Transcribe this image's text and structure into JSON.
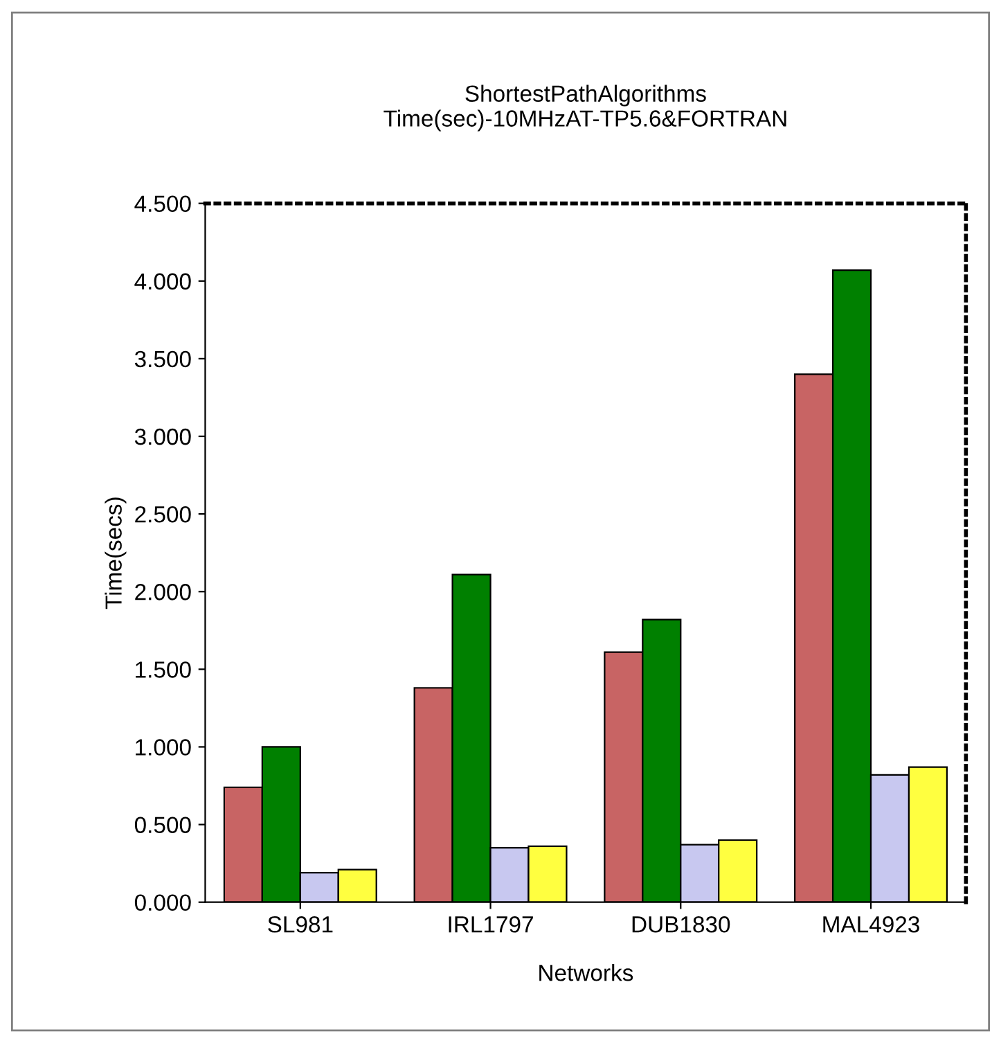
{
  "chart_data": {
    "type": "bar",
    "title": "ShortestPathAlgorithms\nTime(sec)-10MHzAT-TP5.6&FORTRAN",
    "xlabel": "Networks",
    "ylabel": "Time(secs)",
    "categories": [
      "SL981",
      "IRL1797",
      "DUB1830",
      "MAL4923"
    ],
    "series": [
      {
        "color": "#c86464",
        "values": [
          0.74,
          1.38,
          1.61,
          3.4
        ]
      },
      {
        "color": "#008000",
        "values": [
          1.0,
          2.11,
          1.82,
          4.07
        ]
      },
      {
        "color": "#c8c8f0",
        "values": [
          0.19,
          0.35,
          0.37,
          0.82
        ]
      },
      {
        "color": "#ffff40",
        "values": [
          0.21,
          0.36,
          0.4,
          0.87
        ]
      }
    ],
    "ylim": [
      0,
      4.5
    ],
    "yticks": [
      {
        "value": 0,
        "label": "0.000"
      },
      {
        "value": 0.5,
        "label": "0.500"
      },
      {
        "value": 1,
        "label": "1.000"
      },
      {
        "value": 1.5,
        "label": "1.500"
      },
      {
        "value": 2,
        "label": "2.000"
      },
      {
        "value": 2.5,
        "label": "2.500"
      },
      {
        "value": 3,
        "label": "3.000"
      },
      {
        "value": 3.5,
        "label": "3.500"
      },
      {
        "value": 4,
        "label": "4.000"
      },
      {
        "value": 4.5,
        "label": "4.500"
      }
    ],
    "grid": false,
    "legend": false
  }
}
